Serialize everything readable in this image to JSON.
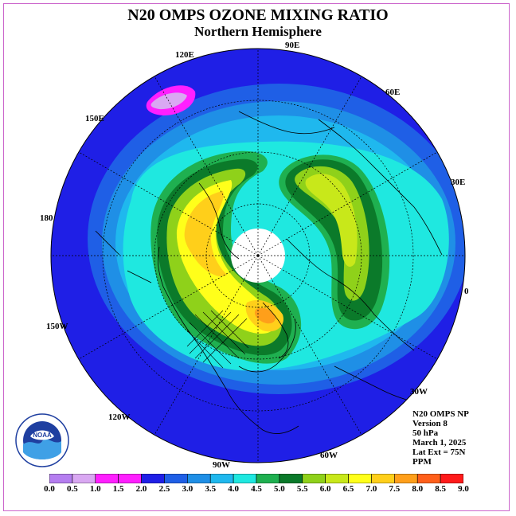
{
  "title": "N20 OMPS OZONE MIXING RATIO",
  "subtitle": "Northern Hemisphere",
  "longitude_labels": {
    "e120": "120E",
    "e90": "90E",
    "e60": "60E",
    "e150": "150E",
    "e30": "30E",
    "e180": "180",
    "e0": "0",
    "w150": "150W",
    "w30": "30W",
    "w120": "120W",
    "w60": "60W",
    "w90": "90W"
  },
  "info": {
    "instrument": "N20 OMPS NP",
    "version": "Version 8",
    "level": "50 hPa",
    "date": "March 1, 2025",
    "lat_ext": "Lat Ext = 75N",
    "units": "PPM"
  },
  "colorbar": {
    "ticks": [
      "0.0",
      "0.5",
      "1.0",
      "1.5",
      "2.0",
      "2.5",
      "3.0",
      "3.5",
      "4.0",
      "4.5",
      "5.0",
      "5.5",
      "6.0",
      "6.5",
      "7.0",
      "7.5",
      "8.0",
      "8.5",
      "9.0"
    ],
    "colors": [
      "#b57ef0",
      "#d9a8f2",
      "#ff1fff",
      "#ff1fff",
      "#1f1fe6",
      "#1f5fe6",
      "#1f8fe6",
      "#1fb8ee",
      "#1fe8e0",
      "#1fb050",
      "#0b7a2a",
      "#8fd11a",
      "#c8e81a",
      "#ffff1a",
      "#ffcf1a",
      "#ff9f1a",
      "#ff5f1a",
      "#ff1a1a",
      "#8b5a3a"
    ]
  },
  "ozone_colors": {
    "outer": "#1f1fe6",
    "ring2": "#1f5fe6",
    "ring3": "#1f8fe6",
    "ring4": "#1fb8ee",
    "cyan": "#1fe8e0",
    "dark_green": "#0b7a2a",
    "green": "#1fb050",
    "lime": "#8fd11a",
    "yellow": "#ffff1a",
    "orange": "#ffcf1a",
    "deep_orange": "#ff9f1a",
    "magenta": "#ff1fff",
    "polar_night": "#ffffff"
  },
  "logo_text": "NOAA"
}
